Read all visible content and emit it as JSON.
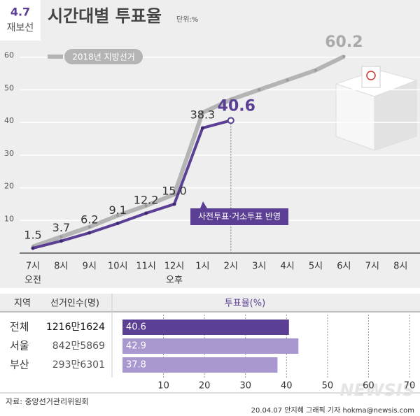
{
  "header": {
    "badge_top": "4.7",
    "badge_bottom": "재보선"
  },
  "chart_data": [
    {
      "type": "line",
      "title": "시간대별 투표율",
      "unit": "단위:%",
      "categories": [
        "7시",
        "8시",
        "9시",
        "10시",
        "11시",
        "12시",
        "1시",
        "2시",
        "3시",
        "4시",
        "5시",
        "6시",
        "7시",
        "8시"
      ],
      "category_sublabels": [
        "오전",
        null,
        null,
        null,
        null,
        "오후",
        null,
        null,
        null,
        null,
        null,
        null,
        null,
        null
      ],
      "series": [
        {
          "name": "2018년 지방선거",
          "color": "#b4b4b4",
          "values": [
            2,
            5,
            8,
            11.5,
            14.5,
            18,
            43,
            47,
            50,
            53,
            56,
            60.2,
            null,
            null
          ],
          "value_labels": [
            null,
            null,
            null,
            null,
            null,
            null,
            null,
            null,
            null,
            null,
            null,
            "60.2",
            null,
            null
          ]
        },
        {
          "color": "#5b3f94",
          "values": [
            1.5,
            3.7,
            6.2,
            9.1,
            12.2,
            15.0,
            38.3,
            40.6,
            null,
            null,
            null,
            null,
            null,
            null
          ],
          "value_labels": [
            "1.5",
            "3.7",
            "6.2",
            "9.1",
            "12.2",
            "15.0",
            "38.3",
            "40.6",
            null,
            null,
            null,
            null,
            null,
            null
          ]
        }
      ],
      "annotation": "사전투표·거소투표 반영",
      "ylim": [
        0,
        70
      ],
      "yticks": [
        10,
        20,
        30,
        40,
        50,
        60
      ],
      "grid": true,
      "legend": "top-left"
    },
    {
      "type": "hbar",
      "category_header": "지역",
      "count_header": "선거인수(명)",
      "value_header": "투표율(%)",
      "categories": [
        "전체",
        "서울",
        "부산"
      ],
      "counts": [
        "1216만1624",
        "842만5869",
        "293만6301"
      ],
      "values": [
        40.6,
        42.9,
        37.8
      ],
      "colors": [
        "#5b3f94",
        "#a898cf",
        "#a898cf"
      ],
      "xlim": [
        0,
        70
      ],
      "xticks": [
        10,
        20,
        30,
        40,
        50,
        60,
        70
      ],
      "grid": true
    }
  ],
  "footer": {
    "source": "자료: 중앙선거관리위원회",
    "credit": "20.04.07 안지혜 그래픽 기자 hokma@newsis.com",
    "watermark": "NEWSIS"
  }
}
